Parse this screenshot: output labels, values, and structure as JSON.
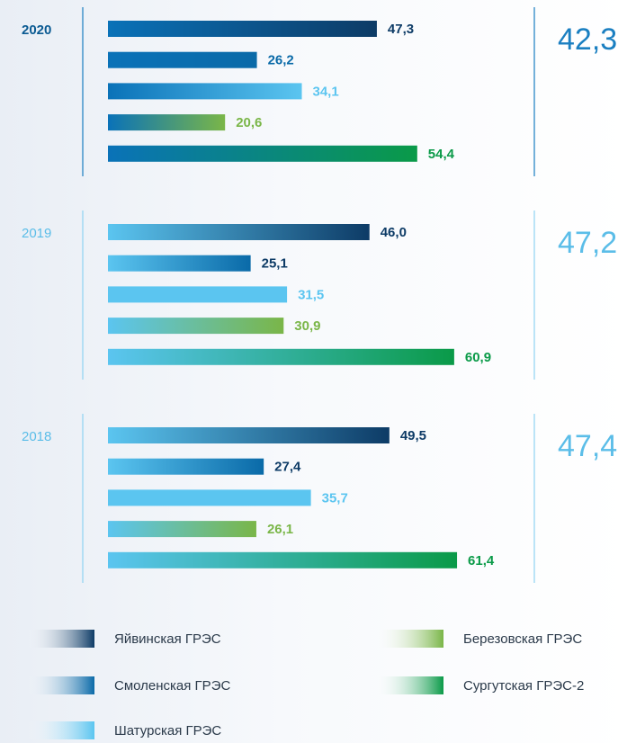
{
  "chart_data": {
    "type": "bar",
    "categories": [
      "2020",
      "2019",
      "2018"
    ],
    "series": [
      {
        "name": "Яйвинская ГРЭС",
        "color": "#0d3b66",
        "values": [
          47.3,
          46.0,
          49.5
        ],
        "value_labels": [
          "47,3",
          "46,0",
          "49,5"
        ]
      },
      {
        "name": "Смоленская ГРЭС",
        "color": "#0a6aa8",
        "values": [
          26.2,
          25.1,
          27.4
        ],
        "value_labels": [
          "26,2",
          "25,1",
          "27,4"
        ]
      },
      {
        "name": "Шатурская ГРЭС",
        "color": "#5bc5f0",
        "values": [
          34.1,
          31.5,
          35.7
        ],
        "value_labels": [
          "34,1",
          "31,5",
          "35,7"
        ]
      },
      {
        "name": "Березовская ГРЭС",
        "color": "#7ab648",
        "values": [
          20.6,
          30.9,
          26.1
        ],
        "value_labels": [
          "20,6",
          "30,9",
          "26,1"
        ]
      },
      {
        "name": "Сургутская ГРЭС-2",
        "color": "#0a9a48",
        "values": [
          54.4,
          60.9,
          61.4
        ],
        "value_labels": [
          "54,4",
          "60,9",
          "61,4"
        ]
      }
    ],
    "totals": [
      42.3,
      47.2,
      47.4
    ],
    "totals_labels": [
      "42,3",
      "47,2",
      "47,4"
    ]
  }
}
